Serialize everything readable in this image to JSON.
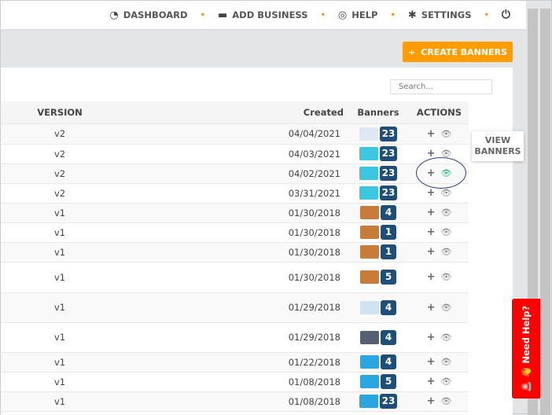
{
  "nav": {
    "items": [
      {
        "icon": "dashboard-icon",
        "label": "DASHBOARD"
      },
      {
        "icon": "briefcase-icon",
        "label": "ADD BUSINESS"
      },
      {
        "icon": "lifebuoy-icon",
        "label": "HELP"
      },
      {
        "icon": "gear-icon",
        "label": "SETTINGS"
      }
    ],
    "power_icon": "power-icon"
  },
  "create_button": "CREATE BANNERS",
  "search": {
    "placeholder": "Search..."
  },
  "table": {
    "headers": {
      "version": "VERSION",
      "created": "Created",
      "banners": "Banners",
      "actions": "ACTIONS"
    },
    "rows": [
      {
        "version": "v2",
        "created": "04/04/2021",
        "banners": "23"
      },
      {
        "version": "v2",
        "created": "04/03/2021",
        "banners": "23"
      },
      {
        "version": "v2",
        "created": "04/02/2021",
        "banners": "23"
      },
      {
        "version": "v2",
        "created": "03/31/2021",
        "banners": "23"
      },
      {
        "version": "v1",
        "created": "01/30/2018",
        "banners": "4"
      },
      {
        "version": "v1",
        "created": "01/30/2018",
        "banners": "1"
      },
      {
        "version": "v1",
        "created": "01/30/2018",
        "banners": "1"
      },
      {
        "version": "v1",
        "created": "01/30/2018",
        "banners": "5"
      },
      {
        "version": "v1",
        "created": "01/29/2018",
        "banners": "4"
      },
      {
        "version": "v1",
        "created": "01/29/2018",
        "banners": "4"
      },
      {
        "version": "v1",
        "created": "01/22/2018",
        "banners": "4"
      },
      {
        "version": "v1",
        "created": "01/08/2018",
        "banners": "5"
      },
      {
        "version": "v1",
        "created": "01/08/2018",
        "banners": "23"
      }
    ]
  },
  "tooltip": "VIEW BANNERS",
  "need_help": "Need Help?",
  "colors": {
    "accent": "#ff9c00",
    "badge": "#1f4e79",
    "help": "#ff0000"
  }
}
